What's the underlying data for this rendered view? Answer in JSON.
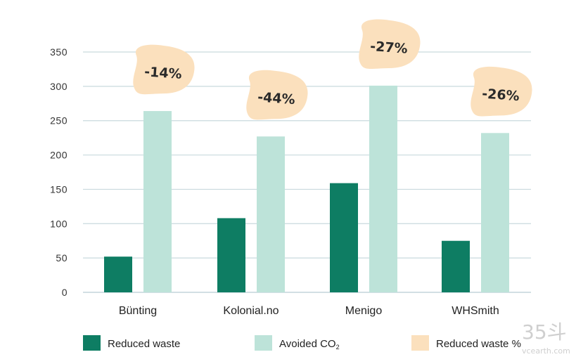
{
  "chart_data": {
    "type": "bar",
    "categories": [
      "Bünting",
      "Kolonial.no",
      "Menigo",
      "WHSmith"
    ],
    "series": [
      {
        "name": "Reduced waste",
        "color": "#0e7d63",
        "values": [
          52,
          108,
          159,
          75
        ]
      },
      {
        "name": "Avoided CO₂",
        "color": "#bde3d9",
        "values": [
          264,
          227,
          301,
          232
        ]
      }
    ],
    "annotations": {
      "name": "Reduced waste %",
      "color": "#fbe0bd",
      "labels": [
        "-14%",
        "-44%",
        "-27%",
        "-26%"
      ]
    },
    "ylim": [
      0,
      350
    ],
    "yticks": [
      0,
      50,
      100,
      150,
      200,
      250,
      300,
      350
    ],
    "grid": true,
    "legend": {
      "position": "bottom",
      "items": [
        {
          "label": "Reduced waste",
          "color": "#0e7d63"
        },
        {
          "label": "Avoided CO",
          "sub": "2",
          "color": "#bde3d9"
        },
        {
          "label": "Reduced waste %",
          "color": "#fbe0bd"
        }
      ]
    }
  },
  "watermark": {
    "top": "35斗",
    "bottom": "vcearth.com"
  }
}
